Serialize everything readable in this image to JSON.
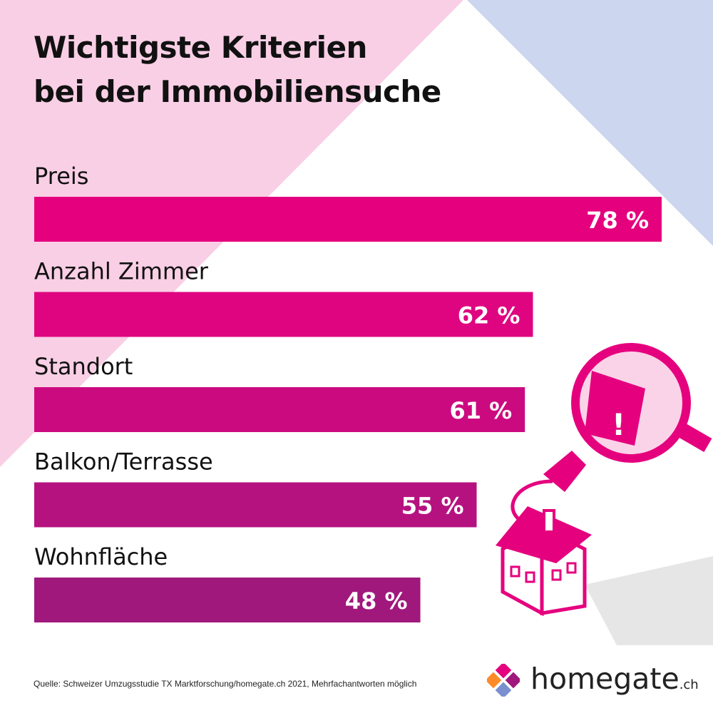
{
  "title_lines": [
    "Wichtigste Kriterien",
    "bei der Immobiliensuche"
  ],
  "chart_data": {
    "type": "bar",
    "orientation": "horizontal",
    "categories": [
      "Preis",
      "Anzahl Zimmer",
      "Standort",
      "Balkon/Terrasse",
      "Wohnfläche"
    ],
    "values": [
      78,
      62,
      61,
      55,
      48
    ],
    "value_labels": [
      "78 %",
      "62 %",
      "61 %",
      "55 %",
      "48 %"
    ],
    "bar_colors": [
      "#e5007e",
      "#df0580",
      "#cc0a80",
      "#b51280",
      "#a0187c"
    ],
    "title": "Wichtigste Kriterien bei der Immobiliensuche",
    "xlim": [
      0,
      78
    ],
    "grid": false
  },
  "source": "Quelle: Schweizer Umzugsstudie TX Marktforschung/homegate.ch 2021, Mehrfachantworten möglich",
  "brand": {
    "name": "homegate",
    "suffix": ".ch"
  },
  "colors": {
    "pink_triangle": "#f9cfe5",
    "blue_triangle": "#ccd6ee",
    "accent": "#e5007e",
    "text": "#111111"
  }
}
